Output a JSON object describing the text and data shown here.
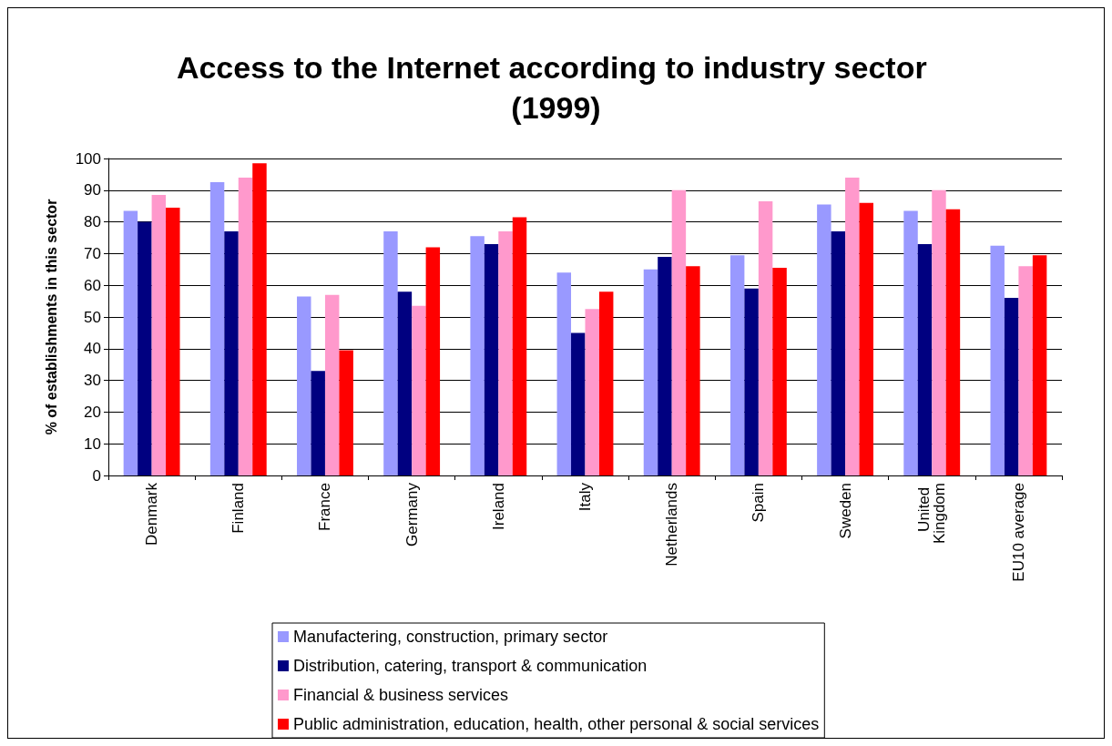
{
  "chart_data": {
    "type": "bar",
    "title": "Access to the Internet according to industry sector (1999)",
    "ylabel": "% of establishments in this sector",
    "categories": [
      "Denmark",
      "Finland",
      "France",
      "Germany",
      "Ireland",
      "Italy",
      "Netherlands",
      "Spain",
      "Sweden",
      "United Kingdom",
      "EU10 average"
    ],
    "series": [
      {
        "name": "Manufactering, construction, primary sector",
        "color": "#9999ff",
        "values": [
          83.5,
          92.5,
          56.5,
          77,
          75.5,
          64,
          65,
          69.5,
          85.5,
          83.5,
          72.5
        ]
      },
      {
        "name": "Distribution, catering, transport & communication",
        "color": "#000080",
        "values": [
          80,
          77,
          33,
          58,
          73,
          45,
          69,
          59,
          77,
          73,
          56
        ]
      },
      {
        "name": "Financial & business services",
        "color": "#ff99cc",
        "values": [
          88.5,
          94,
          57,
          53.5,
          77,
          52.5,
          90,
          86.5,
          94,
          90,
          66
        ]
      },
      {
        "name": "Public administration, education, health, other personal & social services",
        "color": "#ff0000",
        "values": [
          84.5,
          98.5,
          39.5,
          72,
          81.5,
          58,
          66,
          65.5,
          86,
          84,
          69.5
        ]
      }
    ],
    "ylim": [
      0,
      100
    ],
    "yticks": [
      0,
      10,
      20,
      30,
      40,
      50,
      60,
      70,
      80,
      90,
      100
    ],
    "grid": "y",
    "legend": "bottom"
  }
}
